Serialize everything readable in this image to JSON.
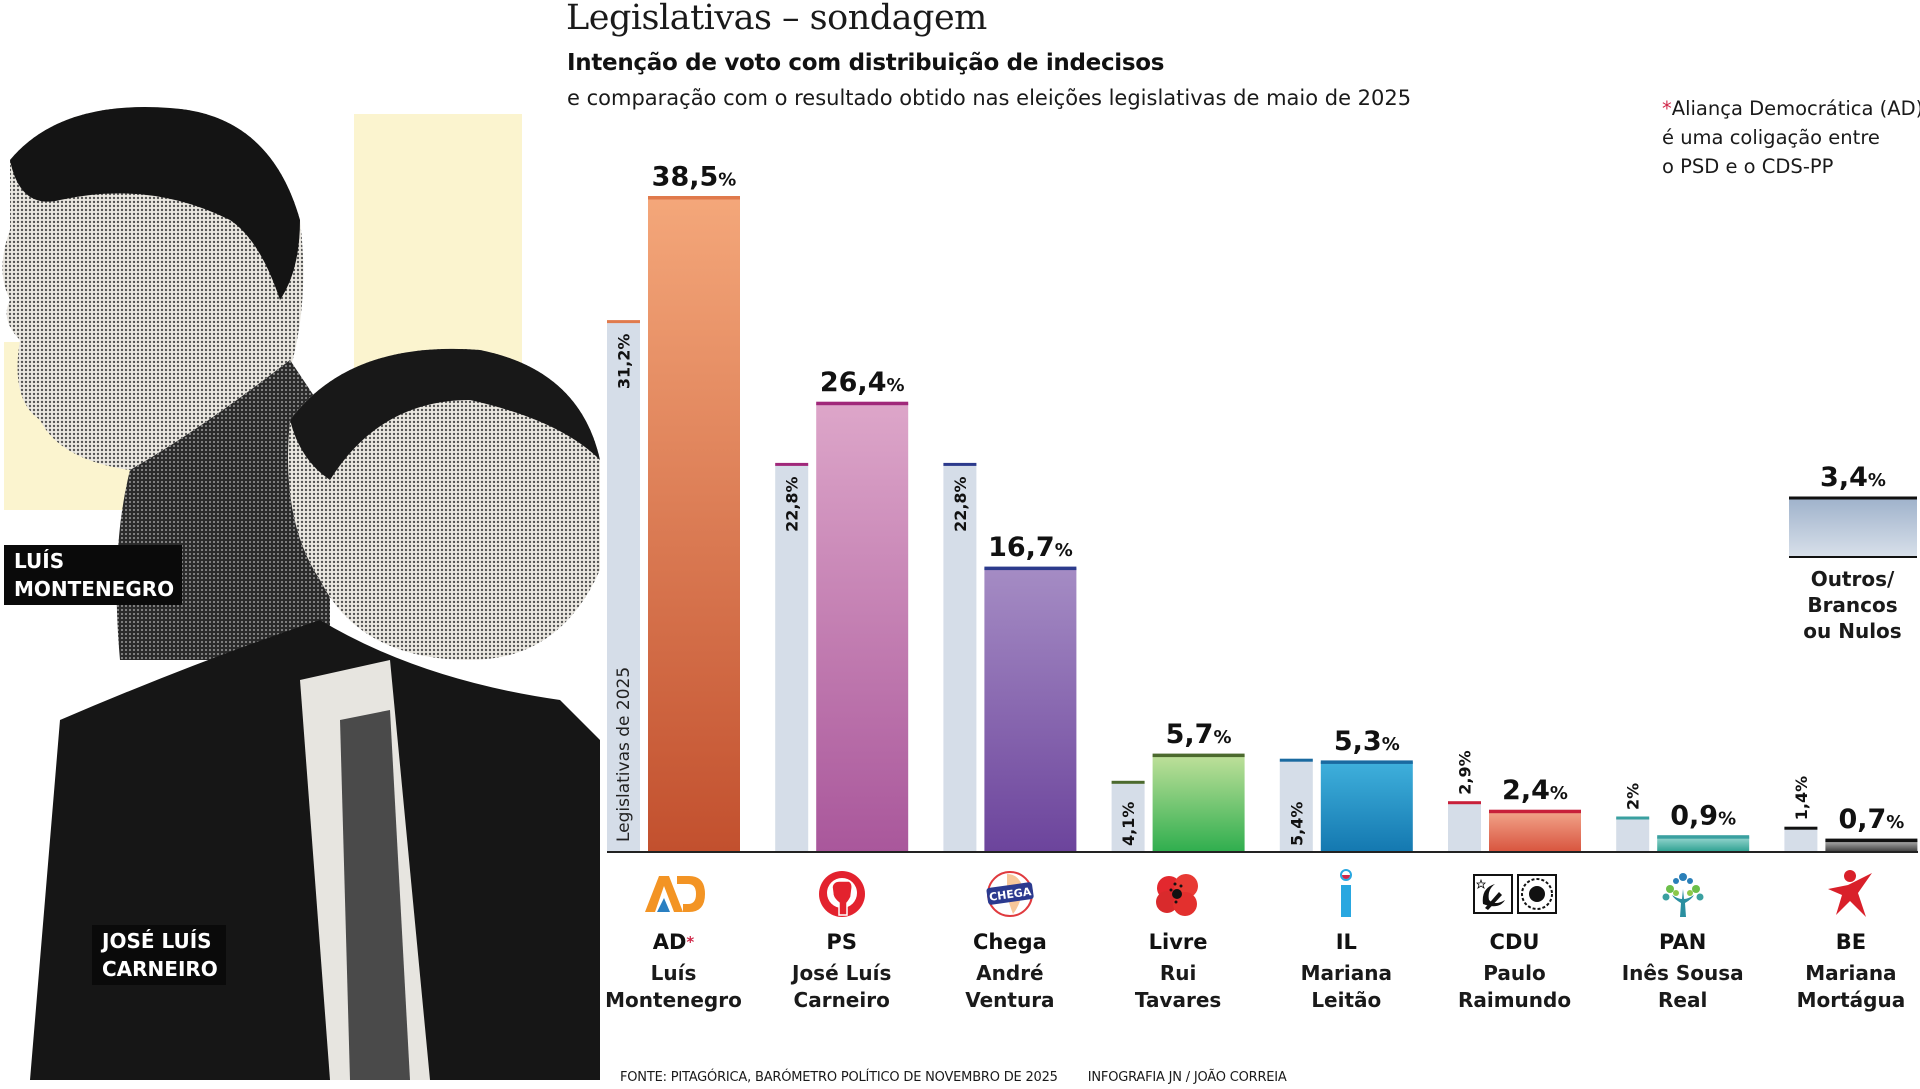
{
  "header": {
    "title": "Legislativas – sondagem",
    "subtitle": "Intenção de voto com distribuição de indecisos",
    "subtitle2": "e comparação com o resultado obtido nas eleições legislativas de maio de 2025"
  },
  "note": {
    "star": "*",
    "line1": "Aliança Democrática (AD)",
    "line2": "é uma coligação entre",
    "line3": "o PSD e o CDS-PP"
  },
  "photo": {
    "name1_line1": "LUÍS",
    "name1_line2": "MONTENEGRO",
    "name2_line1": "JOSÉ LUÍS",
    "name2_line2": "CARNEIRO"
  },
  "chart_data": {
    "type": "bar",
    "title": "Legislativas – sondagem",
    "subtitle": "Intenção de voto com distribuição de indecisos",
    "xlabel": "",
    "ylabel": "",
    "ylim": [
      0,
      40
    ],
    "grid": false,
    "comparison_label": "Legislativas de 2025",
    "unit": "%",
    "categories": [
      "AD",
      "PS",
      "Chega",
      "Livre",
      "IL",
      "CDU",
      "PAN",
      "BE"
    ],
    "series": [
      {
        "name": "Legislativas de 2025",
        "values": [
          31.2,
          22.8,
          22.8,
          4.1,
          5.4,
          2.9,
          2.0,
          1.4
        ],
        "labels": [
          "31,2%",
          "22,8%",
          "22,8%",
          "4,1%",
          "5,4%",
          "2,9%",
          "2%",
          "1,4%"
        ]
      },
      {
        "name": "Sondagem",
        "values": [
          38.5,
          26.4,
          16.7,
          5.7,
          5.3,
          2.4,
          0.9,
          0.7
        ],
        "labels": [
          "38,5",
          "26,4",
          "16,7",
          "5,7",
          "5,3",
          "2,4",
          "0,9",
          "0,7"
        ]
      }
    ],
    "parties": [
      {
        "abbr": "AD",
        "star": "*",
        "leader1": "Luís",
        "leader2": "Montenegro",
        "color_top": "#f4a77a",
        "color_bottom": "#c2502e",
        "accent": "#e07a4c",
        "logo": "ad-logo"
      },
      {
        "abbr": "PS",
        "star": "",
        "leader1": "José Luís",
        "leader2": "Carneiro",
        "color_top": "#dda6c9",
        "color_bottom": "#a9579b",
        "accent": "#a0287a",
        "logo": "ps-fist-logo"
      },
      {
        "abbr": "Chega",
        "star": "",
        "leader1": "André",
        "leader2": "Ventura",
        "color_top": "#a58cc4",
        "color_bottom": "#6c449c",
        "accent": "#2c3a8c",
        "logo": "chega-logo"
      },
      {
        "abbr": "Livre",
        "star": "",
        "leader1": "Rui",
        "leader2": "Tavares",
        "color_top": "#bfe09a",
        "color_bottom": "#2fae4e",
        "accent": "#4c6a2e",
        "logo": "livre-poppy-logo"
      },
      {
        "abbr": "IL",
        "star": "",
        "leader1": "Mariana",
        "leader2": "Leitão",
        "color_top": "#3fb0dc",
        "color_bottom": "#1478b0",
        "accent": "#1a6aa0",
        "logo": "il-logo"
      },
      {
        "abbr": "CDU",
        "star": "",
        "leader1": "Paulo",
        "leader2": "Raimundo",
        "color_top": "#f2a48a",
        "color_bottom": "#d8543e",
        "accent": "#c8203a",
        "logo": "cdu-logo"
      },
      {
        "abbr": "PAN",
        "star": "",
        "leader1": "Inês Sousa",
        "leader2": "Real",
        "color_top": "#9ad8d2",
        "color_bottom": "#2ca090",
        "accent": "#3aa0a0",
        "logo": "pan-tree-logo"
      },
      {
        "abbr": "BE",
        "star": "",
        "leader1": "Mariana",
        "leader2": "Mortágua",
        "color_top": "#b8b8b8",
        "color_bottom": "#3a3a3a",
        "accent": "#111111",
        "logo": "be-star-logo"
      }
    ],
    "other": {
      "label1": "Outros/",
      "label2": "Brancos",
      "label3": "ou Nulos",
      "value": 3.4,
      "value_label": "3,4",
      "color": "#b7c7da"
    },
    "comparison_color": "#d5dde8",
    "star_color": "#d0284a"
  },
  "footer": {
    "source": "FONTE: PITAGÓRICA, BARÓMETRO POLÍTICO DE NOVEMBRO DE 2025",
    "credit": "INFOGRAFIA JN / JOÃO CORREIA"
  }
}
